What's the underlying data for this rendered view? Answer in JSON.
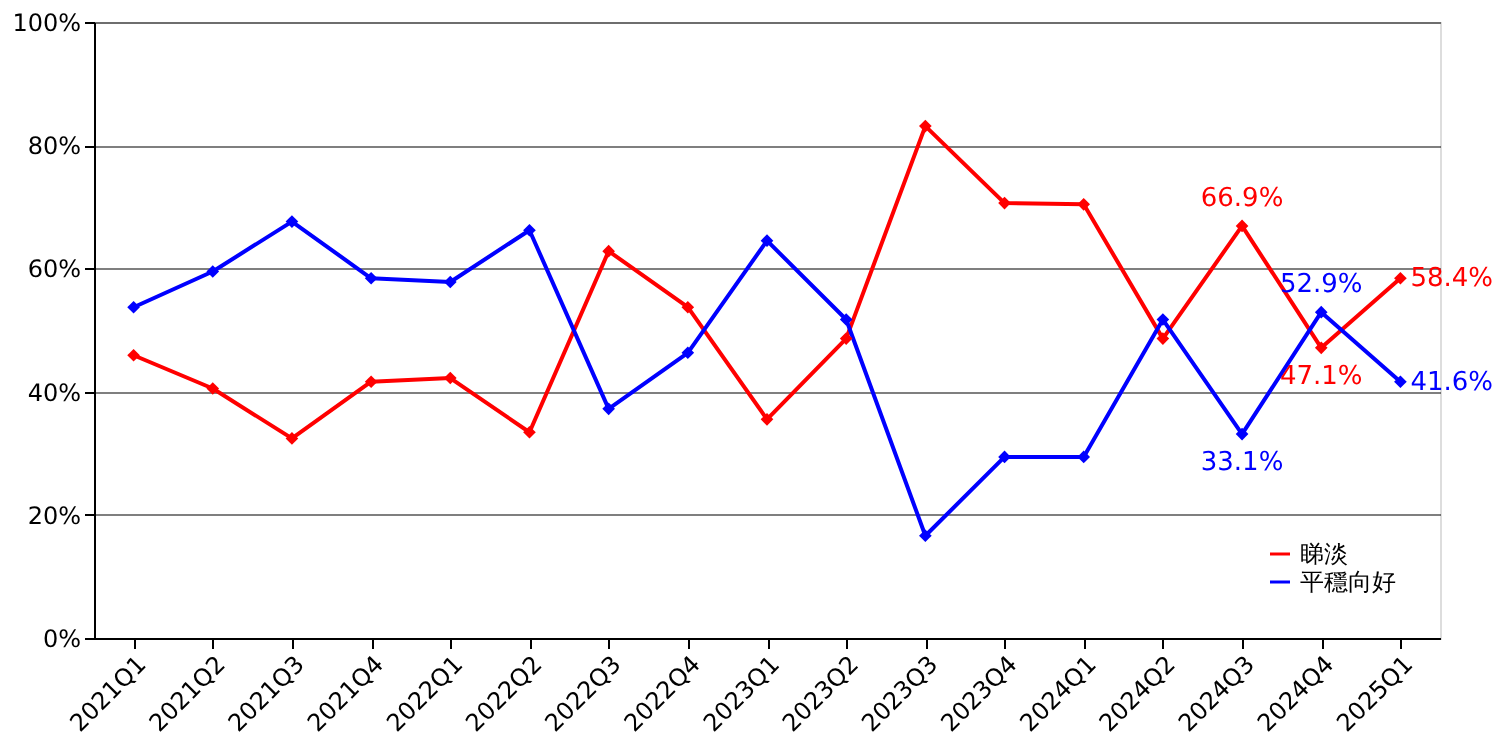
{
  "chart_data": {
    "type": "line",
    "categories": [
      "2021Q1",
      "2021Q2",
      "2021Q3",
      "2021Q4",
      "2022Q1",
      "2022Q2",
      "2022Q3",
      "2022Q4",
      "2023Q1",
      "2023Q2",
      "2023Q3",
      "2023Q4",
      "2024Q1",
      "2024Q2",
      "2024Q3",
      "2024Q4",
      "2025Q1"
    ],
    "series": [
      {
        "name": "睇淡",
        "color": "#ff0000",
        "values": [
          45.9,
          40.5,
          32.4,
          41.6,
          42.2,
          33.4,
          62.8,
          53.7,
          35.5,
          48.6,
          83.1,
          70.6,
          70.4,
          48.6,
          66.9,
          47.1,
          58.4
        ],
        "value_labels": [
          null,
          null,
          null,
          null,
          null,
          null,
          null,
          null,
          null,
          null,
          null,
          null,
          null,
          null,
          "66.9%",
          "47.1%",
          "58.4%"
        ]
      },
      {
        "name": "平穩向好",
        "color": "#0000ff",
        "values": [
          53.7,
          59.5,
          67.6,
          58.4,
          57.8,
          66.2,
          37.2,
          46.3,
          64.5,
          51.7,
          16.6,
          29.4,
          29.4,
          51.7,
          33.1,
          52.9,
          41.6
        ],
        "value_labels": [
          null,
          null,
          null,
          null,
          null,
          null,
          null,
          null,
          null,
          null,
          null,
          null,
          null,
          null,
          "33.1%",
          "52.9%",
          "41.6%"
        ]
      }
    ],
    "ylim": [
      0,
      100
    ],
    "yticks": [
      {
        "value": 0,
        "label": "0%"
      },
      {
        "value": 20,
        "label": "20%"
      },
      {
        "value": 40,
        "label": "40%"
      },
      {
        "value": 60,
        "label": "60%"
      },
      {
        "value": 80,
        "label": "80%"
      },
      {
        "value": 100,
        "label": "100%"
      }
    ],
    "grid": "y",
    "legend": "bottom right",
    "marker": "diamond",
    "line_style": "solid"
  }
}
